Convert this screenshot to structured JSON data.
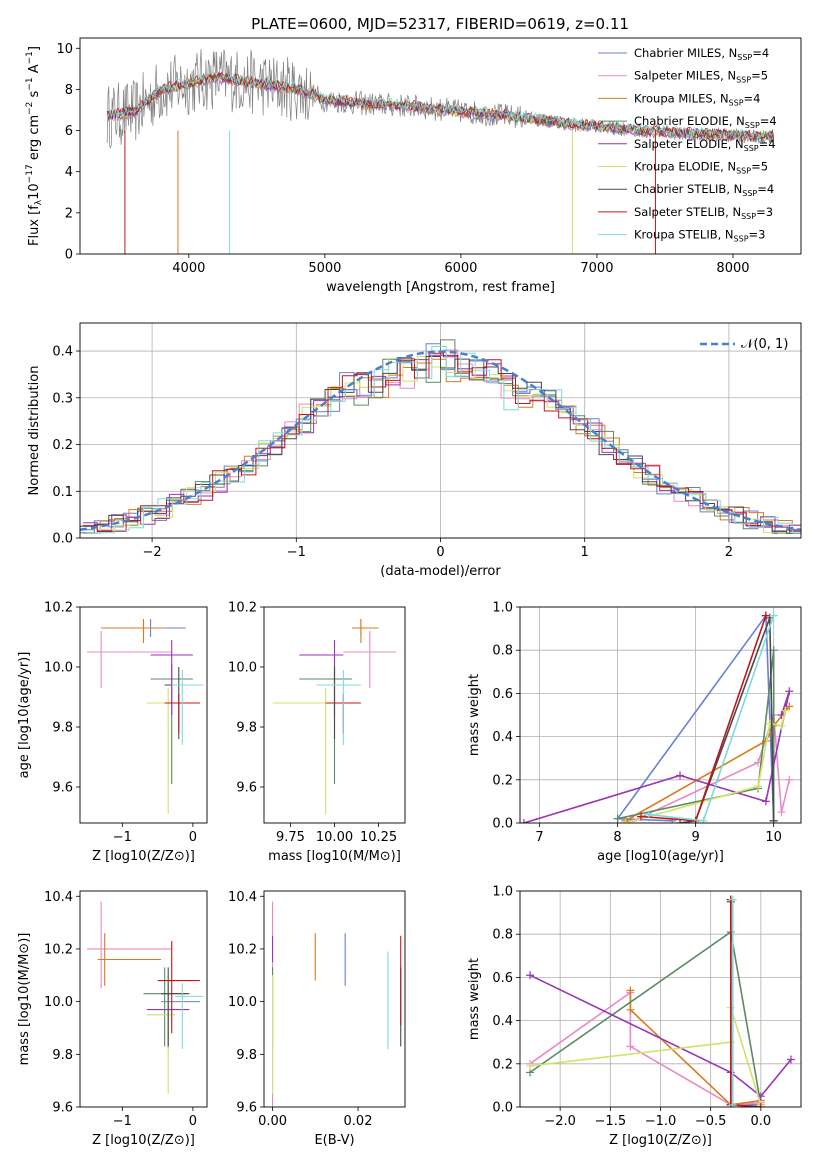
{
  "figure": {
    "title": "PLATE=0600, MJD=52317, FIBERID=0619, z=0.11"
  },
  "colors": {
    "cm": "#6b7fd6",
    "sm": "#e98ac4",
    "km": "#d97b1f",
    "ce": "#5b8a64",
    "se": "#9a34b6",
    "ke": "#cfe366",
    "cs": "#4a4a4a",
    "ss": "#c0171a",
    "ks": "#7fd8de",
    "data": "#7f7f7f",
    "normal": "#4a7fd0"
  },
  "chart_data": [
    {
      "id": "spectrum",
      "type": "line",
      "xlabel": "wavelength [Angstrom, rest frame]",
      "ylabel": "Flux [f_λ 10^-17 erg cm^-2 s^-1 A^-1]",
      "xlim": [
        3200,
        8500
      ],
      "ylim": [
        0,
        10.5
      ],
      "xticks": [
        4000,
        5000,
        6000,
        7000,
        8000
      ],
      "yticks": [
        0,
        2,
        4,
        6,
        8,
        10
      ],
      "legend_position": "top-right",
      "series": [
        {
          "name": "Chabrier MILES, N_SSP=4",
          "key": "cm"
        },
        {
          "name": "Salpeter MILES, N_SSP=5",
          "key": "sm"
        },
        {
          "name": "Kroupa MILES, N_SSP=4",
          "key": "km"
        },
        {
          "name": "Chabrier ELODIE, N_SSP=4",
          "key": "ce"
        },
        {
          "name": "Salpeter ELODIE, N_SSP=4",
          "key": "se"
        },
        {
          "name": "Kroupa ELODIE, N_SSP=5",
          "key": "ke"
        },
        {
          "name": "Chabrier STELIB, N_SSP=4",
          "key": "cs"
        },
        {
          "name": "Salpeter STELIB, N_SSP=3",
          "key": "ss"
        },
        {
          "name": "Kroupa STELIB, N_SSP=3",
          "key": "ks"
        }
      ],
      "continuum": [
        [
          3400,
          6.7
        ],
        [
          3600,
          6.9
        ],
        [
          3800,
          8.0
        ],
        [
          4000,
          8.3
        ],
        [
          4200,
          8.6
        ],
        [
          4400,
          8.4
        ],
        [
          4600,
          8.2
        ],
        [
          4800,
          8.0
        ],
        [
          5000,
          7.5
        ],
        [
          5300,
          7.3
        ],
        [
          5600,
          7.2
        ],
        [
          5900,
          7.0
        ],
        [
          6200,
          6.8
        ],
        [
          6500,
          6.6
        ],
        [
          6800,
          6.3
        ],
        [
          7000,
          6.2
        ],
        [
          7300,
          6.0
        ],
        [
          7600,
          5.9
        ],
        [
          7900,
          5.8
        ],
        [
          8200,
          5.7
        ],
        [
          8300,
          5.7
        ]
      ],
      "data_range": [
        3400,
        8300
      ]
    },
    {
      "id": "residuals",
      "type": "line",
      "xlabel": "(data-model)/error",
      "ylabel": "Normed distribution",
      "xlim": [
        -2.5,
        2.5
      ],
      "ylim": [
        0,
        0.46
      ],
      "xticks": [
        -2,
        -1,
        0,
        1,
        2
      ],
      "yticks": [
        0.0,
        0.1,
        0.2,
        0.3,
        0.4
      ],
      "grid": true,
      "legend_position": "top-right",
      "normal_label": "𝒩(0, 1)"
    },
    {
      "id": "age_vs_Z",
      "type": "scatter",
      "xlabel": "Z [log10(Z/Z⊙)]",
      "ylabel": "age [log10(age/yr)]",
      "xlim": [
        -1.6,
        0.2
      ],
      "ylim": [
        9.48,
        10.2
      ],
      "xticks": [
        -1,
        0
      ],
      "yticks": [
        9.6,
        9.8,
        10.0,
        10.2
      ],
      "points": [
        {
          "key": "cm",
          "x": -0.6,
          "y": 10.13,
          "xerr": [
            0.7,
            0.5
          ],
          "yerr": [
            0.03,
            0.03
          ]
        },
        {
          "key": "sm",
          "x": -1.3,
          "y": 10.05,
          "xerr": [
            0.2,
            1.0
          ],
          "yerr": [
            0.12,
            0.07
          ]
        },
        {
          "key": "km",
          "x": -0.7,
          "y": 10.13,
          "xerr": [
            0.6,
            0.3
          ],
          "yerr": [
            0.05,
            0.03
          ]
        },
        {
          "key": "ce",
          "x": -0.3,
          "y": 9.96,
          "xerr": [
            0.3,
            0.3
          ],
          "yerr": [
            0.35,
            0.05
          ]
        },
        {
          "key": "se",
          "x": -0.3,
          "y": 10.04,
          "xerr": [
            0.3,
            0.3
          ],
          "yerr": [
            0.2,
            0.05
          ]
        },
        {
          "key": "ke",
          "x": -0.35,
          "y": 9.88,
          "xerr": [
            0.3,
            0.1
          ],
          "yerr": [
            0.37,
            0.05
          ]
        },
        {
          "key": "cs",
          "x": -0.2,
          "y": 9.94,
          "xerr": [
            0.2,
            0.3
          ],
          "yerr": [
            0.18,
            0.06
          ]
        },
        {
          "key": "ss",
          "x": -0.2,
          "y": 9.88,
          "xerr": [
            0.2,
            0.3
          ],
          "yerr": [
            0.1,
            0.03
          ]
        },
        {
          "key": "ks",
          "x": -0.15,
          "y": 9.94,
          "xerr": [
            0.15,
            0.3
          ],
          "yerr": [
            0.2,
            0.05
          ]
        }
      ]
    },
    {
      "id": "age_vs_mass",
      "type": "scatter",
      "xlabel": "mass [log10(M/M⊙)]",
      "ylabel": "",
      "xlim": [
        9.6,
        10.4
      ],
      "ylim": [
        9.48,
        10.2
      ],
      "xticks": [
        9.75,
        10.0,
        10.25
      ],
      "yticks": [
        9.6,
        9.8,
        10.0,
        10.2
      ],
      "points": [
        {
          "key": "cm",
          "x": 10.15,
          "y": 10.13,
          "xerr": [
            0.05,
            0.05
          ],
          "yerr": [
            0.03,
            0.03
          ]
        },
        {
          "key": "sm",
          "x": 10.2,
          "y": 10.05,
          "xerr": [
            0.15,
            0.15
          ],
          "yerr": [
            0.12,
            0.07
          ]
        },
        {
          "key": "km",
          "x": 10.15,
          "y": 10.13,
          "xerr": [
            0.05,
            0.1
          ],
          "yerr": [
            0.05,
            0.03
          ]
        },
        {
          "key": "ce",
          "x": 10.0,
          "y": 9.96,
          "xerr": [
            0.2,
            0.1
          ],
          "yerr": [
            0.35,
            0.05
          ]
        },
        {
          "key": "se",
          "x": 10.0,
          "y": 10.04,
          "xerr": [
            0.2,
            0.05
          ],
          "yerr": [
            0.2,
            0.05
          ]
        },
        {
          "key": "ke",
          "x": 9.95,
          "y": 9.88,
          "xerr": [
            0.3,
            0.1
          ],
          "yerr": [
            0.37,
            0.05
          ]
        },
        {
          "key": "cs",
          "x": 10.0,
          "y": 9.94,
          "xerr": [
            0.1,
            0.1
          ],
          "yerr": [
            0.18,
            0.06
          ]
        },
        {
          "key": "ss",
          "x": 10.05,
          "y": 9.88,
          "xerr": [
            0.1,
            0.1
          ],
          "yerr": [
            0.1,
            0.03
          ]
        },
        {
          "key": "ks",
          "x": 10.05,
          "y": 9.94,
          "xerr": [
            0.15,
            0.1
          ],
          "yerr": [
            0.2,
            0.05
          ]
        }
      ]
    },
    {
      "id": "weight_vs_age",
      "type": "line",
      "xlabel": "age [log10(age/yr)]",
      "ylabel": "mass weight",
      "xlim": [
        6.75,
        10.35
      ],
      "ylim": [
        0,
        1.0
      ],
      "xticks": [
        7,
        8,
        9,
        10
      ],
      "yticks": [
        0.0,
        0.2,
        0.4,
        0.6,
        0.8,
        1.0
      ],
      "grid": true,
      "series": [
        {
          "key": "cm",
          "x": [
            8.7,
            8.0,
            9.9,
            10.0
          ],
          "y": [
            0.01,
            0.02,
            0.96,
            0.01
          ]
        },
        {
          "key": "sm",
          "x": [
            8.2,
            9.8,
            10.0,
            10.1,
            10.2
          ],
          "y": [
            0.01,
            0.28,
            0.5,
            0.05,
            0.2
          ]
        },
        {
          "key": "km",
          "x": [
            8.1,
            9.9,
            10.0,
            10.2
          ],
          "y": [
            0.01,
            0.38,
            0.45,
            0.54
          ]
        },
        {
          "key": "ce",
          "x": [
            8.0,
            9.8,
            10.0,
            10.0
          ],
          "y": [
            0.02,
            0.16,
            0.8,
            0.01
          ]
        },
        {
          "key": "se",
          "x": [
            6.8,
            8.8,
            9.9,
            10.2,
            10.1
          ],
          "y": [
            0.0,
            0.22,
            0.1,
            0.61,
            0.5
          ]
        },
        {
          "key": "ke",
          "x": [
            8.1,
            9.8,
            9.95,
            10.1,
            10.15
          ],
          "y": [
            0.0,
            0.17,
            0.46,
            0.45,
            0.52
          ]
        },
        {
          "key": "cs",
          "x": [
            8.8,
            9.0,
            9.95,
            10.0
          ],
          "y": [
            0.0,
            0.01,
            0.95,
            0.01
          ]
        },
        {
          "key": "ss",
          "x": [
            8.3,
            9.0,
            9.9
          ],
          "y": [
            0.03,
            0.01,
            0.96
          ]
        },
        {
          "key": "ks",
          "x": [
            8.4,
            9.1,
            10.0
          ],
          "y": [
            0.04,
            0.01,
            0.96
          ]
        }
      ]
    },
    {
      "id": "mass_vs_Z",
      "type": "scatter",
      "xlabel": "Z [log10(Z/Z⊙)]",
      "ylabel": "mass [log10(M/M⊙)]",
      "xlim": [
        -1.6,
        0.2
      ],
      "ylim": [
        9.6,
        10.42
      ],
      "xticks": [
        -1,
        0
      ],
      "yticks": [
        9.6,
        9.8,
        10.0,
        10.2,
        10.4
      ],
      "points": [
        {
          "key": "cm",
          "x": -0.35,
          "y": 10.0,
          "xerr": [
            0.1,
            0.45
          ],
          "yerr": [
            0.07,
            0.07
          ]
        },
        {
          "key": "sm",
          "x": -1.3,
          "y": 10.2,
          "xerr": [
            0.2,
            1.0
          ],
          "yerr": [
            0.15,
            0.18
          ]
        },
        {
          "key": "km",
          "x": -1.25,
          "y": 10.16,
          "xerr": [
            0.1,
            0.8
          ],
          "yerr": [
            0.1,
            0.1
          ]
        },
        {
          "key": "ce",
          "x": -0.4,
          "y": 10.03,
          "xerr": [
            0.3,
            0.3
          ],
          "yerr": [
            0.2,
            0.1
          ]
        },
        {
          "key": "se",
          "x": -0.35,
          "y": 9.97,
          "xerr": [
            0.3,
            0.3
          ],
          "yerr": [
            0.15,
            0.03
          ]
        },
        {
          "key": "ke",
          "x": -0.35,
          "y": 9.95,
          "xerr": [
            0.3,
            0.1
          ],
          "yerr": [
            0.3,
            0.15
          ]
        },
        {
          "key": "cs",
          "x": -0.35,
          "y": 10.03,
          "xerr": [
            0.1,
            0.3
          ],
          "yerr": [
            0.2,
            0.1
          ]
        },
        {
          "key": "ss",
          "x": -0.3,
          "y": 10.08,
          "xerr": [
            0.2,
            0.4
          ],
          "yerr": [
            0.2,
            0.15
          ]
        },
        {
          "key": "ks",
          "x": -0.15,
          "y": 10.02,
          "xerr": [
            0.1,
            0.3
          ],
          "yerr": [
            0.2,
            0.05
          ]
        }
      ]
    },
    {
      "id": "mass_vs_ebv",
      "type": "scatter",
      "xlabel": "E(B-V)",
      "ylabel": "",
      "xlim": [
        -0.002,
        0.031
      ],
      "ylim": [
        9.6,
        10.42
      ],
      "xticks": [
        0.0,
        0.02
      ],
      "yticks": [
        9.6,
        9.8,
        10.0,
        10.2,
        10.4
      ],
      "points": [
        {
          "key": "cm",
          "x": 0.017,
          "y": 10.16,
          "xerr": [
            0,
            0
          ],
          "yerr": [
            0.1,
            0.1
          ]
        },
        {
          "key": "sm",
          "x": 0.0,
          "y": 10.2,
          "xerr": [
            0,
            0
          ],
          "yerr": [
            0.6,
            0.18
          ]
        },
        {
          "key": "km",
          "x": 0.01,
          "y": 10.16,
          "xerr": [
            0,
            0
          ],
          "yerr": [
            0.08,
            0.1
          ]
        },
        {
          "key": "ce",
          "x": 0.0,
          "y": 10.03,
          "xerr": [
            0,
            0
          ],
          "yerr": [
            0.2,
            0.1
          ]
        },
        {
          "key": "se",
          "x": 0.0,
          "y": 10.2,
          "xerr": [
            0,
            0
          ],
          "yerr": [
            0.05,
            0.05
          ]
        },
        {
          "key": "ke",
          "x": 0.0,
          "y": 9.95,
          "xerr": [
            0,
            0
          ],
          "yerr": [
            0.3,
            0.15
          ]
        },
        {
          "key": "cs",
          "x": 0.03,
          "y": 10.03,
          "xerr": [
            0,
            0
          ],
          "yerr": [
            0.2,
            0.1
          ]
        },
        {
          "key": "ss",
          "x": 0.03,
          "y": 10.08,
          "xerr": [
            0,
            0
          ],
          "yerr": [
            0.17,
            0.17
          ]
        },
        {
          "key": "ks",
          "x": 0.027,
          "y": 10.02,
          "xerr": [
            0,
            0
          ],
          "yerr": [
            0.2,
            0.17
          ]
        }
      ]
    },
    {
      "id": "weight_vs_Z",
      "type": "line",
      "xlabel": "Z [log10(Z/Z⊙)]",
      "ylabel": "mass weight",
      "xlim": [
        -2.4,
        0.4
      ],
      "ylim": [
        0,
        1.0
      ],
      "xticks": [
        -2.0,
        -1.5,
        -1.0,
        -0.5,
        0.0
      ],
      "yticks": [
        0.0,
        0.2,
        0.4,
        0.6,
        0.8,
        1.0
      ],
      "grid": true,
      "series": [
        {
          "key": "cm",
          "x": [
            -0.3,
            -0.3,
            0.0
          ],
          "y": [
            0.96,
            0.01,
            0.01
          ]
        },
        {
          "key": "sm",
          "x": [
            -2.3,
            -1.3,
            -1.3,
            -0.3,
            0.0
          ],
          "y": [
            0.2,
            0.53,
            0.28,
            0.01,
            0.02
          ]
        },
        {
          "key": "km",
          "x": [
            -1.3,
            -1.3,
            -0.3,
            0.0
          ],
          "y": [
            0.54,
            0.45,
            0.01,
            0.03
          ]
        },
        {
          "key": "ce",
          "x": [
            -2.3,
            -0.3,
            0.0
          ],
          "y": [
            0.16,
            0.81,
            0.01
          ]
        },
        {
          "key": "se",
          "x": [
            -2.3,
            -0.3,
            0.0,
            0.3
          ],
          "y": [
            0.61,
            0.16,
            0.05,
            0.22
          ]
        },
        {
          "key": "ke",
          "x": [
            -2.3,
            -0.3,
            -0.3,
            0.0
          ],
          "y": [
            0.19,
            0.3,
            0.46,
            0.01
          ]
        },
        {
          "key": "cs",
          "x": [
            -0.3,
            -0.3
          ],
          "y": [
            0.95,
            0.01
          ]
        },
        {
          "key": "ss",
          "x": [
            -0.3,
            -0.3,
            0.0
          ],
          "y": [
            0.96,
            0.01,
            0.0
          ]
        },
        {
          "key": "ks",
          "x": [
            -0.28,
            -0.28
          ],
          "y": [
            0.96,
            0.01
          ]
        }
      ]
    }
  ]
}
